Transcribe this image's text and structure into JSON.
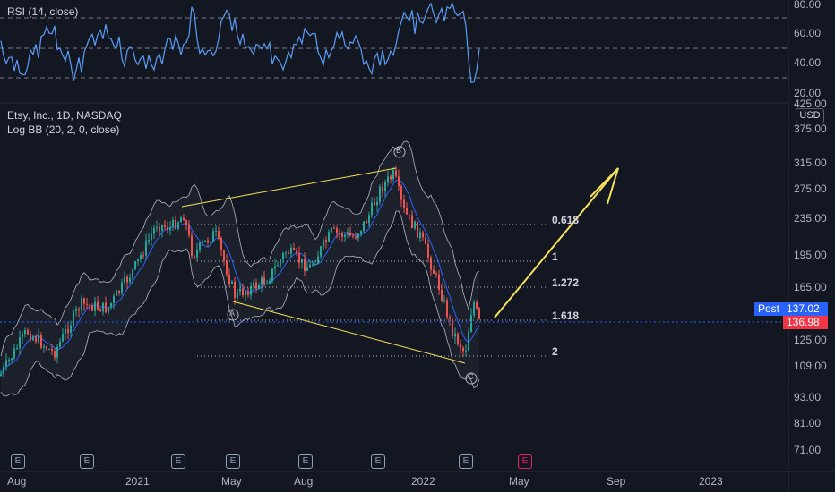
{
  "rsi_panel": {
    "title": "RSI (14, close)",
    "levels": [
      70,
      50,
      30
    ],
    "axis": [
      "80.00",
      "60.00",
      "40.00",
      "20.00"
    ]
  },
  "main_panel": {
    "title": "Etsy, Inc., 1D, NASDAQ",
    "indicator": "Log BB (20, 2, 0, close)",
    "currency": "USD",
    "price_axis": [
      "425.00",
      "375.00",
      "315.00",
      "275.00",
      "235.00",
      "195.00",
      "165.00",
      "125.00",
      "109.00",
      "93.00",
      "81.00",
      "71.00"
    ],
    "post_label": "Post",
    "post_price": "137.02",
    "last_price": "136.98"
  },
  "fib_levels": [
    "0.618",
    "1",
    "1.272",
    "1.618",
    "2"
  ],
  "wave_labels": [
    "A",
    "B",
    "C"
  ],
  "time_axis": [
    "Aug",
    "2021",
    "May",
    "Aug",
    "2022",
    "May",
    "Sep",
    "2023"
  ],
  "earnings_label": "E",
  "colors": {
    "background": "#131722",
    "up": "#26a69a",
    "down": "#ef5350",
    "rsi": "#5b9cf6",
    "bb_basis": "#2962ff",
    "bb_band": "#b2b5be",
    "drawing": "#f7e25b",
    "post_tag": "#2962ff",
    "last_tag": "#f23645"
  }
}
